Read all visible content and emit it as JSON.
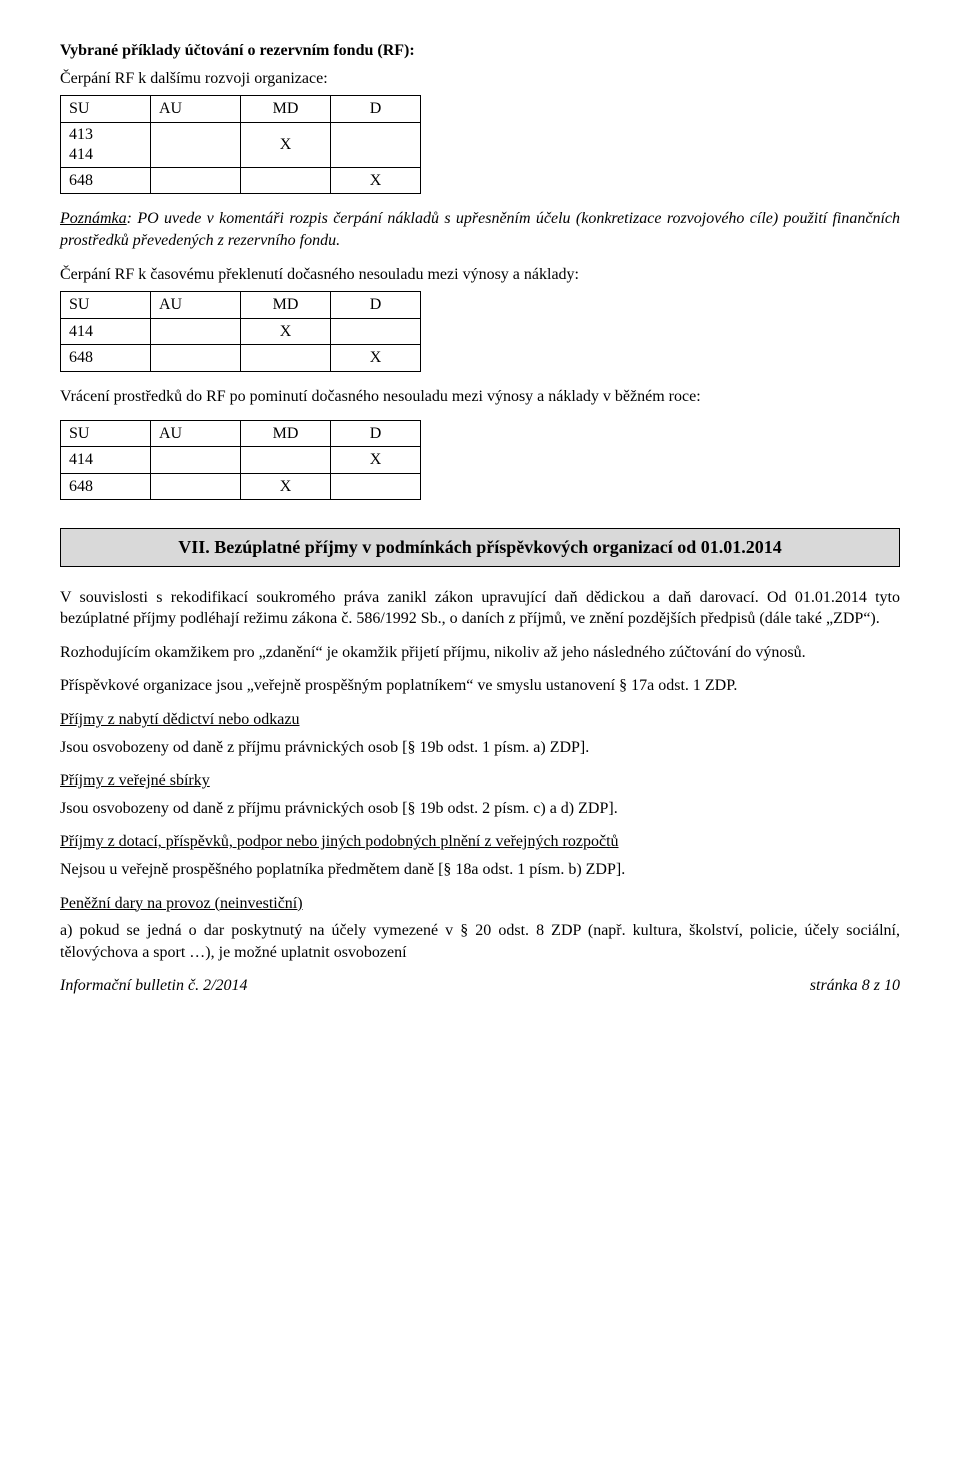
{
  "heading1": "Vybrané příklady účtování o rezervním fondu (RF):",
  "line_cerpani1": "Čerpání RF k dalšímu rozvoji organizace:",
  "table_headers": {
    "su": "SU",
    "au": "AU",
    "md": "MD",
    "d": "D"
  },
  "table1": {
    "rows": [
      {
        "su": "413\n414",
        "au": "",
        "md": "X",
        "d": ""
      },
      {
        "su": "648",
        "au": "",
        "md": "",
        "d": "X"
      }
    ]
  },
  "poznamka_label": "Poznámka",
  "poznamka_text": ": PO uvede v komentáři rozpis čerpání nákladů s upřesněním účelu (konkretizace rozvojového cíle) použití finančních prostředků převedených z rezervního fondu.",
  "line_cerpani2": "Čerpání RF k časovému překlenutí dočasného nesouladu mezi výnosy a náklady:",
  "table2": {
    "rows": [
      {
        "su": "414",
        "au": "",
        "md": "X",
        "d": ""
      },
      {
        "su": "648",
        "au": "",
        "md": "",
        "d": "X"
      }
    ]
  },
  "line_vraceni": "Vrácení prostředků do RF po pominutí dočasného nesouladu mezi výnosy a náklady v běžném roce:",
  "table3": {
    "rows": [
      {
        "su": "414",
        "au": "",
        "md": "",
        "d": "X"
      },
      {
        "su": "648",
        "au": "",
        "md": "X",
        "d": ""
      }
    ]
  },
  "section_title": "VII.  Bezúplatné příjmy v podmínkách příspěvkových organizací od 01.01.2014",
  "para1": "V souvislosti s rekodifikací soukromého práva zanikl zákon upravující daň dědickou a daň darovací. Od 01.01.2014 tyto bezúplatné příjmy  podléhají režimu zákona č. 586/1992 Sb., o daních z příjmů, ve znění pozdějších předpisů (dále také „ZDP“).",
  "para2": "Rozhodujícím okamžikem pro „zdanění“ je okamžik přijetí příjmu, nikoliv až jeho následného zúčtování do výnosů.",
  "para3": "Příspěvkové organizace jsou „veřejně prospěšným poplatníkem“ ve smyslu ustanovení § 17a odst. 1 ZDP.",
  "sub1_title": "Příjmy z nabytí dědictví nebo odkazu",
  "sub1_text": "Jsou osvobozeny od daně z příjmu právnických osob [§ 19b odst. 1 písm. a) ZDP].",
  "sub2_title": "Příjmy z veřejné sbírky",
  "sub2_text": "Jsou osvobozeny od daně z příjmu právnických osob [§ 19b odst. 2 písm. c) a d) ZDP].",
  "sub3_title": "Příjmy z dotací, příspěvků, podpor nebo jiných podobných plnění z veřejných rozpočtů",
  "sub3_text": "Nejsou u veřejně prospěšného poplatníka předmětem daně [§ 18a odst. 1 písm. b)  ZDP].",
  "sub4_title": "Peněžní dary na provoz (neinvestiční)",
  "sub4_item_a": "a)  pokud se jedná o dar poskytnutý na účely vymezené v § 20 odst. 8 ZDP (např. kultura, školství, policie, účely sociální, tělovýchova a sport …), je možné uplatnit osvobození",
  "footer_left": "Informační bulletin č. 2/2014",
  "footer_right": "stránka 8 z 10"
}
